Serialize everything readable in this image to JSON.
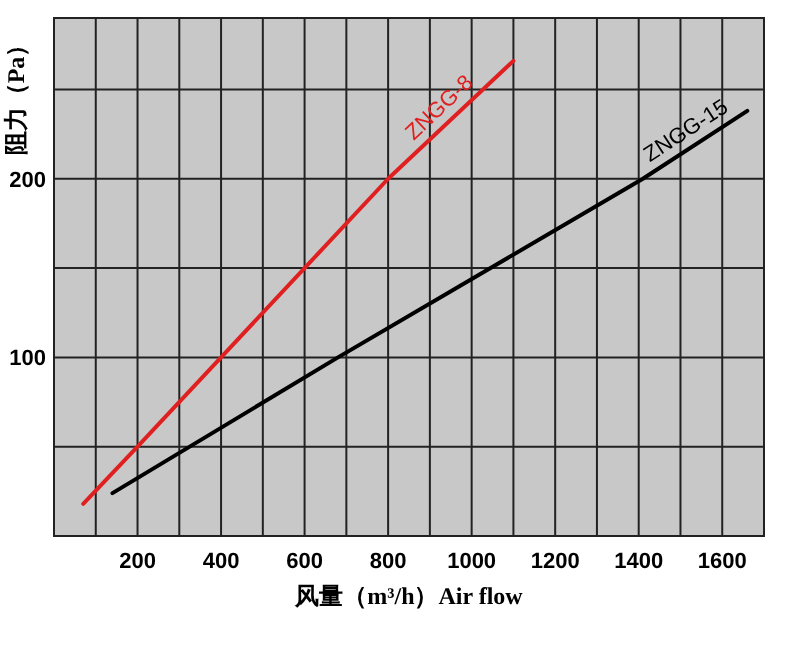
{
  "chart_data": {
    "type": "line",
    "xlabel": "风量（m³/h）Air flow",
    "ylabel": "阻力（Pa）",
    "series": [
      {
        "name": "ZNGG-8",
        "color": "#e02020",
        "x": [
          70,
          200,
          400,
          800,
          1100
        ],
        "values": [
          18,
          50,
          100,
          200,
          266
        ]
      },
      {
        "name": "ZNGG-15",
        "color": "#000000",
        "x": [
          140,
          680,
          1410,
          1660
        ],
        "values": [
          24,
          100,
          200,
          238
        ]
      }
    ],
    "xlim": [
      0,
      1700
    ],
    "ylim": [
      0,
      290
    ],
    "xticks": [
      {
        "value": 100,
        "label": null
      },
      200,
      {
        "value": 300,
        "label": null
      },
      400,
      {
        "value": 500,
        "label": null
      },
      600,
      {
        "value": 700,
        "label": null
      },
      800,
      {
        "value": 900,
        "label": null
      },
      1000,
      {
        "value": 1100,
        "label": null
      },
      1200,
      {
        "value": 1300,
        "label": null
      },
      1400,
      {
        "value": 1500,
        "label": null
      },
      1600
    ],
    "yticks": [
      {
        "value": 50,
        "label": null
      },
      100,
      {
        "value": 150,
        "label": null
      },
      200,
      {
        "value": 250,
        "label": null
      }
    ],
    "grid": true,
    "marker": "none",
    "line_style": "solid"
  }
}
